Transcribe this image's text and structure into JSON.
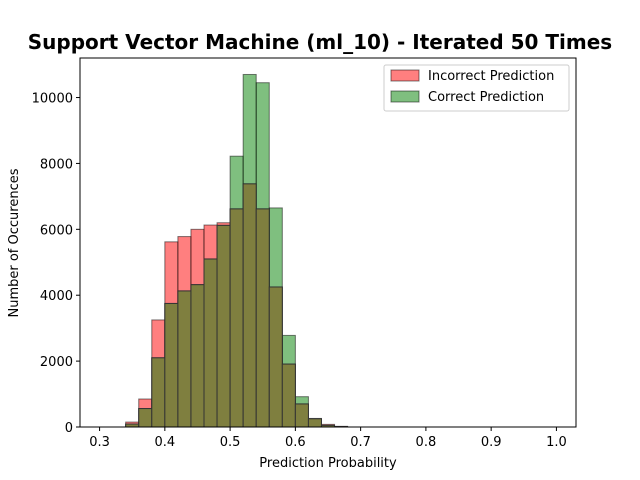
{
  "chart_data": {
    "type": "bar",
    "title": "Support Vector Machine (ml_10) - Iterated 50 Times",
    "xlabel": "Prediction Probability",
    "ylabel": "Number of Occurences",
    "xlim": [
      0.27,
      1.03
    ],
    "ylim": [
      0,
      11200
    ],
    "xticks": [
      0.3,
      0.4,
      0.5,
      0.6,
      0.7,
      0.8,
      0.9,
      1.0
    ],
    "xtick_labels": [
      "0.3",
      "0.4",
      "0.5",
      "0.6",
      "0.7",
      "0.8",
      "0.9",
      "1.0"
    ],
    "yticks": [
      0,
      2000,
      4000,
      6000,
      8000,
      10000
    ],
    "ytick_labels": [
      "0",
      "2000",
      "4000",
      "6000",
      "8000",
      "10000"
    ],
    "bin_edges": [
      0.3,
      0.32,
      0.34,
      0.36,
      0.38,
      0.4,
      0.42,
      0.44,
      0.46,
      0.48,
      0.5,
      0.52,
      0.54,
      0.56,
      0.58,
      0.6,
      0.62,
      0.64,
      0.66,
      0.68,
      0.7,
      0.72,
      0.74,
      0.76,
      0.78,
      0.8,
      0.82,
      0.84,
      0.86,
      0.88,
      0.9,
      0.92,
      0.94,
      0.96,
      0.98,
      1.0
    ],
    "series": [
      {
        "name": "Incorrect Prediction",
        "color": "#ff0000",
        "values": [
          0,
          0,
          150,
          850,
          3250,
          5620,
          5780,
          6000,
          6130,
          6200,
          6620,
          7380,
          6620,
          4250,
          1910,
          700,
          250,
          80,
          20,
          0,
          0,
          0,
          0,
          0,
          0,
          0,
          0,
          0,
          0,
          0,
          0,
          0,
          0,
          0,
          0
        ]
      },
      {
        "name": "Correct Prediction",
        "color": "#008000",
        "values": [
          0,
          0,
          90,
          560,
          2100,
          3750,
          4130,
          4320,
          5100,
          6120,
          8220,
          10700,
          10450,
          6650,
          2780,
          920,
          260,
          50,
          10,
          0,
          0,
          0,
          0,
          0,
          0,
          0,
          0,
          0,
          0,
          0,
          0,
          0,
          0,
          0,
          0
        ]
      }
    ],
    "overlap_color": "#7f7f3f",
    "legend_position": "top-right",
    "grid": false
  }
}
